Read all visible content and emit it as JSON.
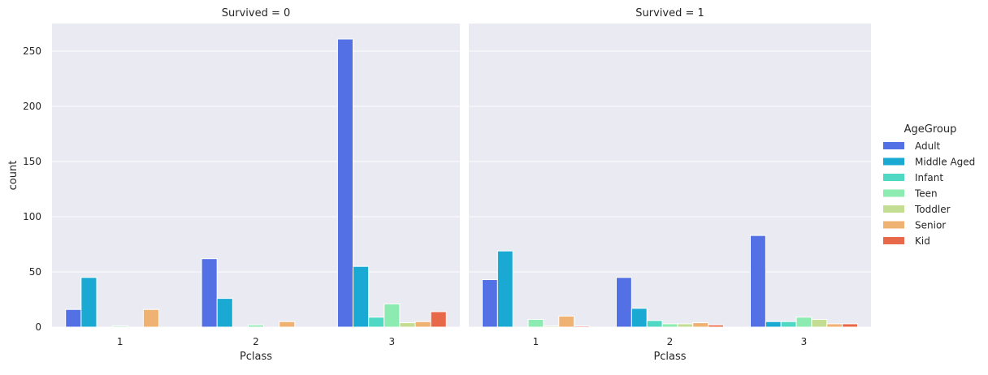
{
  "chart_data": {
    "type": "bar",
    "style": "seaborn-darkgrid",
    "palette": {
      "Adult": "#5470e5",
      "Middle Aged": "#1aa9d3",
      "Infant": "#4fd8c4",
      "Teen": "#8cebb0",
      "Toddler": "#c3de93",
      "Senior": "#f0b273",
      "Kid": "#e8684a"
    },
    "plot_background": "#eaeaf2",
    "grid_color": "#ffffff",
    "legend": {
      "title": "AgeGroup",
      "placement": "right",
      "entries": [
        "Adult",
        "Middle Aged",
        "Infant",
        "Teen",
        "Toddler",
        "Senior",
        "Kid"
      ]
    },
    "ylabel": "count",
    "ylim": [
      0,
      275
    ],
    "yticks": [
      0,
      50,
      100,
      150,
      200,
      250
    ],
    "grid": true,
    "facets": [
      {
        "title": "Survived = 0",
        "xlabel": "Pclass",
        "categories": [
          "1",
          "2",
          "3"
        ],
        "series": [
          {
            "name": "Adult",
            "values": [
              16,
              62,
              261
            ]
          },
          {
            "name": "Middle Aged",
            "values": [
              45,
              26,
              55
            ]
          },
          {
            "name": "Infant",
            "values": [
              0,
              0,
              9
            ]
          },
          {
            "name": "Teen",
            "values": [
              1,
              2,
              21
            ]
          },
          {
            "name": "Toddler",
            "values": [
              0,
              0,
              4
            ]
          },
          {
            "name": "Senior",
            "values": [
              16,
              5,
              5
            ]
          },
          {
            "name": "Kid",
            "values": [
              0,
              0,
              14
            ]
          }
        ]
      },
      {
        "title": "Survived = 1",
        "xlabel": "Pclass",
        "categories": [
          "1",
          "2",
          "3"
        ],
        "series": [
          {
            "name": "Adult",
            "values": [
              43,
              45,
              83
            ]
          },
          {
            "name": "Middle Aged",
            "values": [
              69,
              17,
              5
            ]
          },
          {
            "name": "Infant",
            "values": [
              0,
              6,
              5
            ]
          },
          {
            "name": "Teen",
            "values": [
              7,
              3,
              9
            ]
          },
          {
            "name": "Toddler",
            "values": [
              1,
              3,
              7
            ]
          },
          {
            "name": "Senior",
            "values": [
              10,
              4,
              3
            ]
          },
          {
            "name": "Kid",
            "values": [
              1,
              2,
              3
            ]
          }
        ]
      }
    ]
  }
}
